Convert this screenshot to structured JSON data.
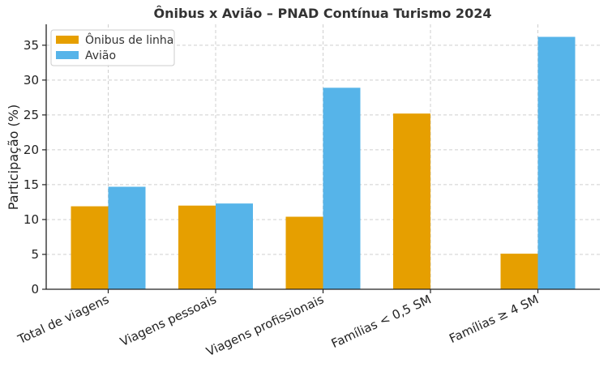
{
  "chart_data": {
    "type": "bar",
    "title": "Ônibus x Avião – PNAD Contínua Turismo 2024",
    "xlabel": "",
    "ylabel": "Participação (%)",
    "categories": [
      "Total de viagens",
      "Viagens pessoais",
      "Viagens profissionais",
      "Famílias < 0,5 SM",
      "Famílias ≥ 4 SM"
    ],
    "series": [
      {
        "name": "Ônibus de linha",
        "color": "#E69F00",
        "values": [
          11.9,
          12.0,
          10.4,
          25.2,
          5.1
        ]
      },
      {
        "name": "Avião",
        "color": "#56B4E9",
        "values": [
          14.7,
          12.3,
          28.9,
          null,
          36.2
        ]
      }
    ],
    "ylim": [
      0,
      38
    ],
    "yticks": [
      0,
      5,
      10,
      15,
      20,
      25,
      30,
      35
    ],
    "grid": true,
    "legend_position": "top-left"
  }
}
